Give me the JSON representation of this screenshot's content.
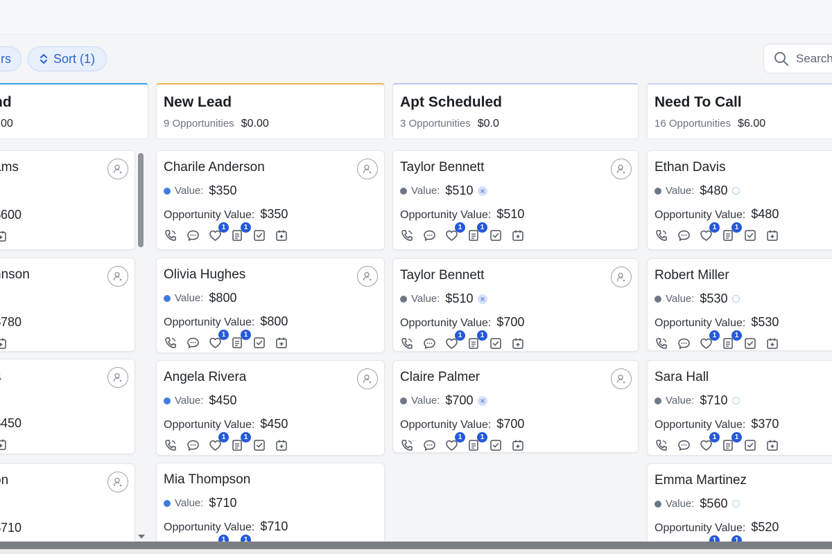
{
  "toolbar": {
    "filters_fragment": "rs",
    "sort_label": "Sort (1)",
    "search_placeholder": "Search"
  },
  "columns": [
    {
      "title": "nd",
      "count": "",
      "amount": "00",
      "accent": "#3aa1e8",
      "cards": [
        {
          "name": "ams",
          "value": "",
          "opp_value": "$600"
        },
        {
          "name": "nnson",
          "value": "",
          "opp_value": "$780"
        },
        {
          "name": "a",
          "value": "",
          "opp_value": "$450"
        },
        {
          "name": "on",
          "value": "",
          "opp_value": "$710"
        }
      ]
    },
    {
      "title": "New Lead",
      "count": "9 Opportunities",
      "amount": "$0.00",
      "accent": "#f2b24a",
      "cards": [
        {
          "name": "Charile Anderson",
          "value": "$350",
          "opp_value": "$350"
        },
        {
          "name": "Olivia Hughes",
          "value": "$800",
          "opp_value": "$800"
        },
        {
          "name": "Angela Rivera",
          "value": "$450",
          "opp_value": "$450"
        },
        {
          "name": "Mia Thompson",
          "value": "$710",
          "opp_value": "$710"
        }
      ]
    },
    {
      "title": "Apt Scheduled",
      "count": "3 Opportunities",
      "amount": "$0.0",
      "accent": "#bcc7f0",
      "cards": [
        {
          "name": "Taylor Bennett",
          "value": "$510",
          "opp_value": "$510"
        },
        {
          "name": "Taylor Bennett",
          "value": "$510",
          "opp_value": "$700"
        },
        {
          "name": "Claire Palmer",
          "value": "$700",
          "opp_value": "$700"
        }
      ]
    },
    {
      "title": "Need To Call",
      "count": "16 Opportunities",
      "amount": "$6.00",
      "accent": "#c8cfef",
      "cards": [
        {
          "name": "Ethan Davis",
          "value": "$480",
          "opp_value": "$480"
        },
        {
          "name": "Robert Miller",
          "value": "$530",
          "opp_value": "$530"
        },
        {
          "name": "Sara Hall",
          "value": "$710",
          "opp_value": "$370"
        },
        {
          "name": "Emma Martinez",
          "value": "$560",
          "opp_value": "$520"
        }
      ]
    }
  ],
  "labels": {
    "value": "Value:",
    "opportunity_value": "Opportunity Value:"
  },
  "badges": {
    "notes": "1",
    "tasks": "1"
  },
  "colors": {
    "accent_blue": "#2559d9",
    "value_dot_blue": "#3d7be0",
    "value_dot_gray": "#6e7787"
  }
}
